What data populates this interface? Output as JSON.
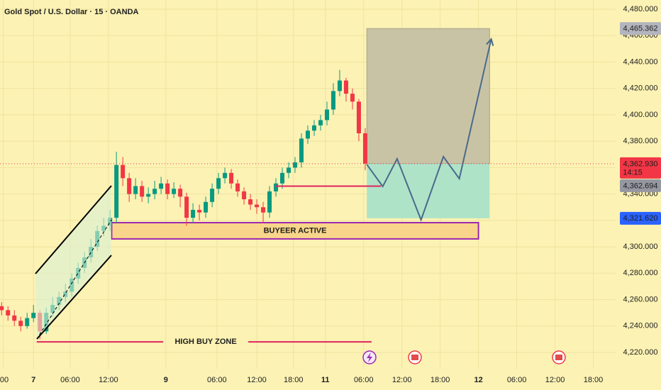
{
  "chart_data": {
    "type": "candlestick",
    "title": "Gold Spot / U.S. Dollar · 15 · OANDA",
    "up_color": "#089981",
    "down_color": "#f23645",
    "x": [
      1,
      5,
      9,
      13,
      17,
      21,
      25,
      29,
      33,
      37,
      41,
      45,
      49,
      53,
      57,
      61,
      65,
      69,
      73,
      77,
      81,
      85,
      89,
      93,
      97,
      101,
      105,
      109,
      113,
      117,
      121,
      125,
      129,
      133,
      137,
      141,
      145,
      149,
      153,
      157,
      161,
      165,
      169,
      173,
      177,
      181,
      185,
      189,
      193,
      197,
      201,
      205,
      209,
      213,
      217,
      221,
      225,
      229
    ],
    "open": [
      4255,
      4252,
      4248,
      4244,
      4240,
      4246,
      4250,
      4236,
      4250,
      4256,
      4262,
      4266,
      4276,
      4284,
      4292,
      4300,
      4312,
      4316,
      4322,
      4362,
      4352,
      4340,
      4346,
      4338,
      4340,
      4344,
      4348,
      4340,
      4344,
      4338,
      4322,
      4328,
      4326,
      4334,
      4344,
      4352,
      4356,
      4348,
      4342,
      4336,
      4332,
      4330,
      4326,
      4342,
      4348,
      4356,
      4360,
      4364,
      4382,
      4388,
      4392,
      4396,
      4404,
      4418,
      4426,
      4416,
      4410,
      4386
    ],
    "high": [
      4258,
      4255,
      4252,
      4247,
      4250,
      4256,
      4252,
      4254,
      4262,
      4266,
      4272,
      4280,
      4288,
      4296,
      4306,
      4316,
      4322,
      4328,
      4372,
      4368,
      4356,
      4352,
      4350,
      4345,
      4350,
      4353,
      4351,
      4349,
      4347,
      4341,
      4333,
      4332,
      4338,
      4348,
      4356,
      4360,
      4359,
      4351,
      4345,
      4340,
      4336,
      4334,
      4346,
      4352,
      4360,
      4364,
      4368,
      4386,
      4392,
      4396,
      4400,
      4410,
      4424,
      4434,
      4428,
      4420,
      4412,
      4390
    ],
    "low": [
      4248,
      4244,
      4240,
      4236,
      4238,
      4243,
      4230,
      4234,
      4247,
      4252,
      4258,
      4262,
      4272,
      4280,
      4288,
      4297,
      4308,
      4312,
      4318,
      4346,
      4334,
      4336,
      4334,
      4333,
      4336,
      4340,
      4336,
      4337,
      4330,
      4316,
      4318,
      4320,
      4322,
      4330,
      4340,
      4348,
      4344,
      4338,
      4332,
      4328,
      4325,
      4318,
      4322,
      4338,
      4344,
      4352,
      4356,
      4360,
      4378,
      4384,
      4388,
      4392,
      4400,
      4414,
      4410,
      4404,
      4380,
      4358
    ],
    "close": [
      4252,
      4248,
      4244,
      4240,
      4246,
      4250,
      4236,
      4250,
      4256,
      4262,
      4266,
      4276,
      4284,
      4292,
      4300,
      4312,
      4316,
      4322,
      4362,
      4352,
      4340,
      4346,
      4338,
      4340,
      4344,
      4348,
      4340,
      4344,
      4338,
      4322,
      4328,
      4326,
      4334,
      4344,
      4352,
      4356,
      4348,
      4342,
      4336,
      4332,
      4330,
      4326,
      4342,
      4348,
      4356,
      4360,
      4364,
      4382,
      4388,
      4392,
      4396,
      4404,
      4418,
      4426,
      4416,
      4410,
      4386,
      4363
    ],
    "xlim": [
      0,
      386
    ],
    "ylim": [
      4220.5,
      4480.5
    ],
    "xticks": [
      {
        "value": 2,
        "label": ":00"
      },
      {
        "value": 21,
        "label": "7"
      },
      {
        "value": 44,
        "label": "06:00"
      },
      {
        "value": 68,
        "label": "12:00"
      },
      {
        "value": 104,
        "label": "9"
      },
      {
        "value": 136,
        "label": "06:00"
      },
      {
        "value": 161,
        "label": "12:00"
      },
      {
        "value": 184,
        "label": "18:00"
      },
      {
        "value": 204,
        "label": "11"
      },
      {
        "value": 228,
        "label": "06:00"
      },
      {
        "value": 252,
        "label": "12:00"
      },
      {
        "value": 276,
        "label": "18:00"
      },
      {
        "value": 300,
        "label": "12"
      },
      {
        "value": 324,
        "label": "06:00"
      },
      {
        "value": 348,
        "label": "12:00"
      },
      {
        "value": 372,
        "label": "18:00"
      }
    ],
    "yticks": [
      {
        "value": 4220,
        "label": "4,220.000"
      },
      {
        "value": 4240,
        "label": "4,240.000"
      },
      {
        "value": 4260,
        "label": "4,260.000"
      },
      {
        "value": 4280,
        "label": "4,280.000"
      },
      {
        "value": 4300,
        "label": "4,300.000"
      },
      {
        "value": 4320,
        "label": "4,320.000"
      },
      {
        "value": 4340,
        "label": "4,340.000"
      },
      {
        "value": 4360,
        "label": "4,360.000"
      },
      {
        "value": 4380,
        "label": "4,380.000"
      },
      {
        "value": 4400,
        "label": "4,400.000"
      },
      {
        "value": 4420,
        "label": "4,420.000"
      },
      {
        "value": 4440,
        "label": "4,440.000"
      },
      {
        "value": 4460,
        "label": "4,460.000"
      },
      {
        "value": 4480,
        "label": "4,480.000"
      }
    ],
    "price_labels": [
      {
        "value": 4465.362,
        "label": "4,465.362",
        "color": "#b2b5be",
        "text_color": "#131722"
      },
      {
        "value": 4362.93,
        "label": "4,362.930",
        "countdown": "14:15",
        "color": "#f23645",
        "text_color": "#ffffff"
      },
      {
        "value": 4362.694,
        "label": "4,362.694",
        "color": "#9598a1",
        "text_color": "#ffffff"
      },
      {
        "value": 4321.62,
        "label": "4,321.620",
        "color": "#2962ff",
        "text_color": "#ffffff"
      }
    ],
    "position": {
      "x": [
        230,
        307
      ],
      "target": 4465.362,
      "entry": 4362.93,
      "stop": 4321.62
    },
    "projection": {
      "x": [
        230,
        240,
        249,
        264,
        278,
        288,
        308
      ],
      "y": [
        4362.4,
        4345.7,
        4366.7,
        4320.4,
        4368.3,
        4351.6,
        4457.4
      ]
    },
    "zones": [
      {
        "label": "BUYEER ACTIVE",
        "x": [
          70,
          300
        ],
        "y": [
          4306,
          4318.3
        ]
      }
    ],
    "lines": [
      {
        "price": 4346,
        "x": [
          173,
          239
        ]
      }
    ],
    "high_buy_zone": {
      "label": "HIGH BUY ZONE",
      "price": 4228,
      "x": [
        23,
        233
      ],
      "label_x": 129
    }
  }
}
